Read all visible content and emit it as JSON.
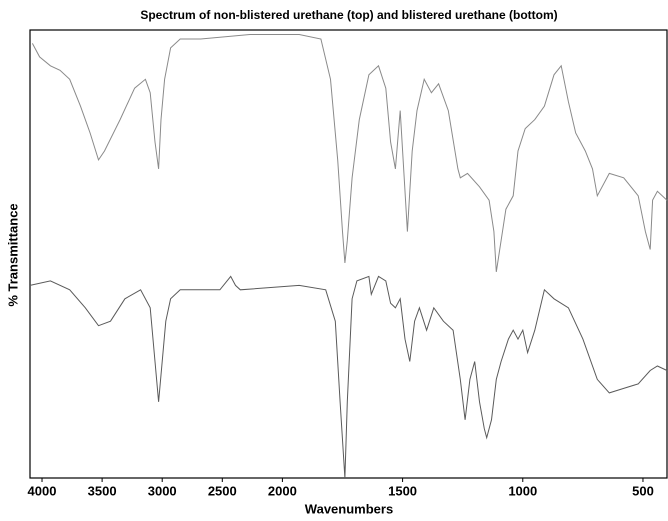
{
  "chart_data": {
    "type": "line",
    "title": "Spectrum of non-blistered urethane (top) and blistered urethane (bottom)",
    "x_label": "Wavenumbers",
    "y_label": "% Transmittance",
    "xlim": [
      4100,
      400
    ],
    "xticks": [
      4000,
      3500,
      3000,
      2500,
      2000,
      1500,
      1000,
      500
    ],
    "xscale": {
      "break": 2000,
      "factor": 2
    },
    "ylim": [
      0,
      100
    ],
    "series": [
      {
        "color": "#8a8a8a",
        "x": [
          4080,
          4020,
          3930,
          3850,
          3770,
          3680,
          3600,
          3530,
          3480,
          3350,
          3230,
          3140,
          3100,
          3060,
          3030,
          3010,
          2980,
          2930,
          2850,
          2680,
          2270,
          1930,
          1840,
          1800,
          1770,
          1750,
          1740,
          1730,
          1710,
          1680,
          1640,
          1600,
          1570,
          1550,
          1530,
          1510,
          1500,
          1480,
          1460,
          1440,
          1410,
          1380,
          1350,
          1310,
          1270,
          1260,
          1230,
          1180,
          1140,
          1120,
          1110,
          1090,
          1070,
          1040,
          1020,
          990,
          950,
          910,
          870,
          840,
          810,
          780,
          740,
          710,
          690,
          640,
          580,
          520,
          490,
          470,
          460,
          440,
          400
        ],
        "values": [
          97,
          94,
          92,
          91,
          89,
          83,
          77,
          71,
          73,
          80,
          87,
          89,
          86,
          75,
          69,
          80,
          89,
          96,
          98,
          98,
          99,
          99,
          98,
          89,
          71,
          55,
          48,
          53,
          67,
          80,
          90,
          92,
          87,
          75,
          69,
          82,
          73,
          55,
          73,
          82,
          89,
          86,
          88,
          82,
          69,
          67,
          68,
          65,
          62,
          55,
          46,
          53,
          60,
          63,
          73,
          78,
          80,
          83,
          90,
          92,
          84,
          77,
          73,
          69,
          63,
          68,
          67,
          63,
          55,
          51,
          62,
          64,
          62
        ]
      },
      {
        "color": "#5a5a5a",
        "x": [
          4100,
          3930,
          3770,
          3640,
          3530,
          3430,
          3310,
          3180,
          3100,
          3060,
          3030,
          3000,
          2970,
          2930,
          2850,
          2520,
          2430,
          2390,
          2350,
          1930,
          1820,
          1780,
          1760,
          1740,
          1730,
          1710,
          1690,
          1640,
          1630,
          1600,
          1570,
          1550,
          1530,
          1510,
          1490,
          1470,
          1450,
          1430,
          1400,
          1370,
          1330,
          1290,
          1260,
          1240,
          1220,
          1200,
          1180,
          1160,
          1150,
          1130,
          1110,
          1090,
          1060,
          1040,
          1020,
          1000,
          980,
          950,
          910,
          870,
          810,
          750,
          690,
          640,
          580,
          520,
          470,
          440,
          400
        ],
        "values": [
          43,
          44,
          42,
          38,
          34,
          35,
          40,
          42,
          38,
          26,
          17,
          26,
          35,
          40,
          42,
          42,
          45,
          43,
          42,
          43,
          42,
          35,
          17,
          0,
          17,
          40,
          44,
          45,
          41,
          45,
          44,
          39,
          38,
          40,
          31,
          26,
          35,
          38,
          33,
          38,
          35,
          33,
          22,
          13,
          22,
          26,
          17,
          11,
          9,
          13,
          22,
          26,
          31,
          33,
          31,
          33,
          28,
          33,
          42,
          40,
          38,
          31,
          22,
          19,
          20,
          21,
          24,
          25,
          24
        ]
      }
    ]
  }
}
